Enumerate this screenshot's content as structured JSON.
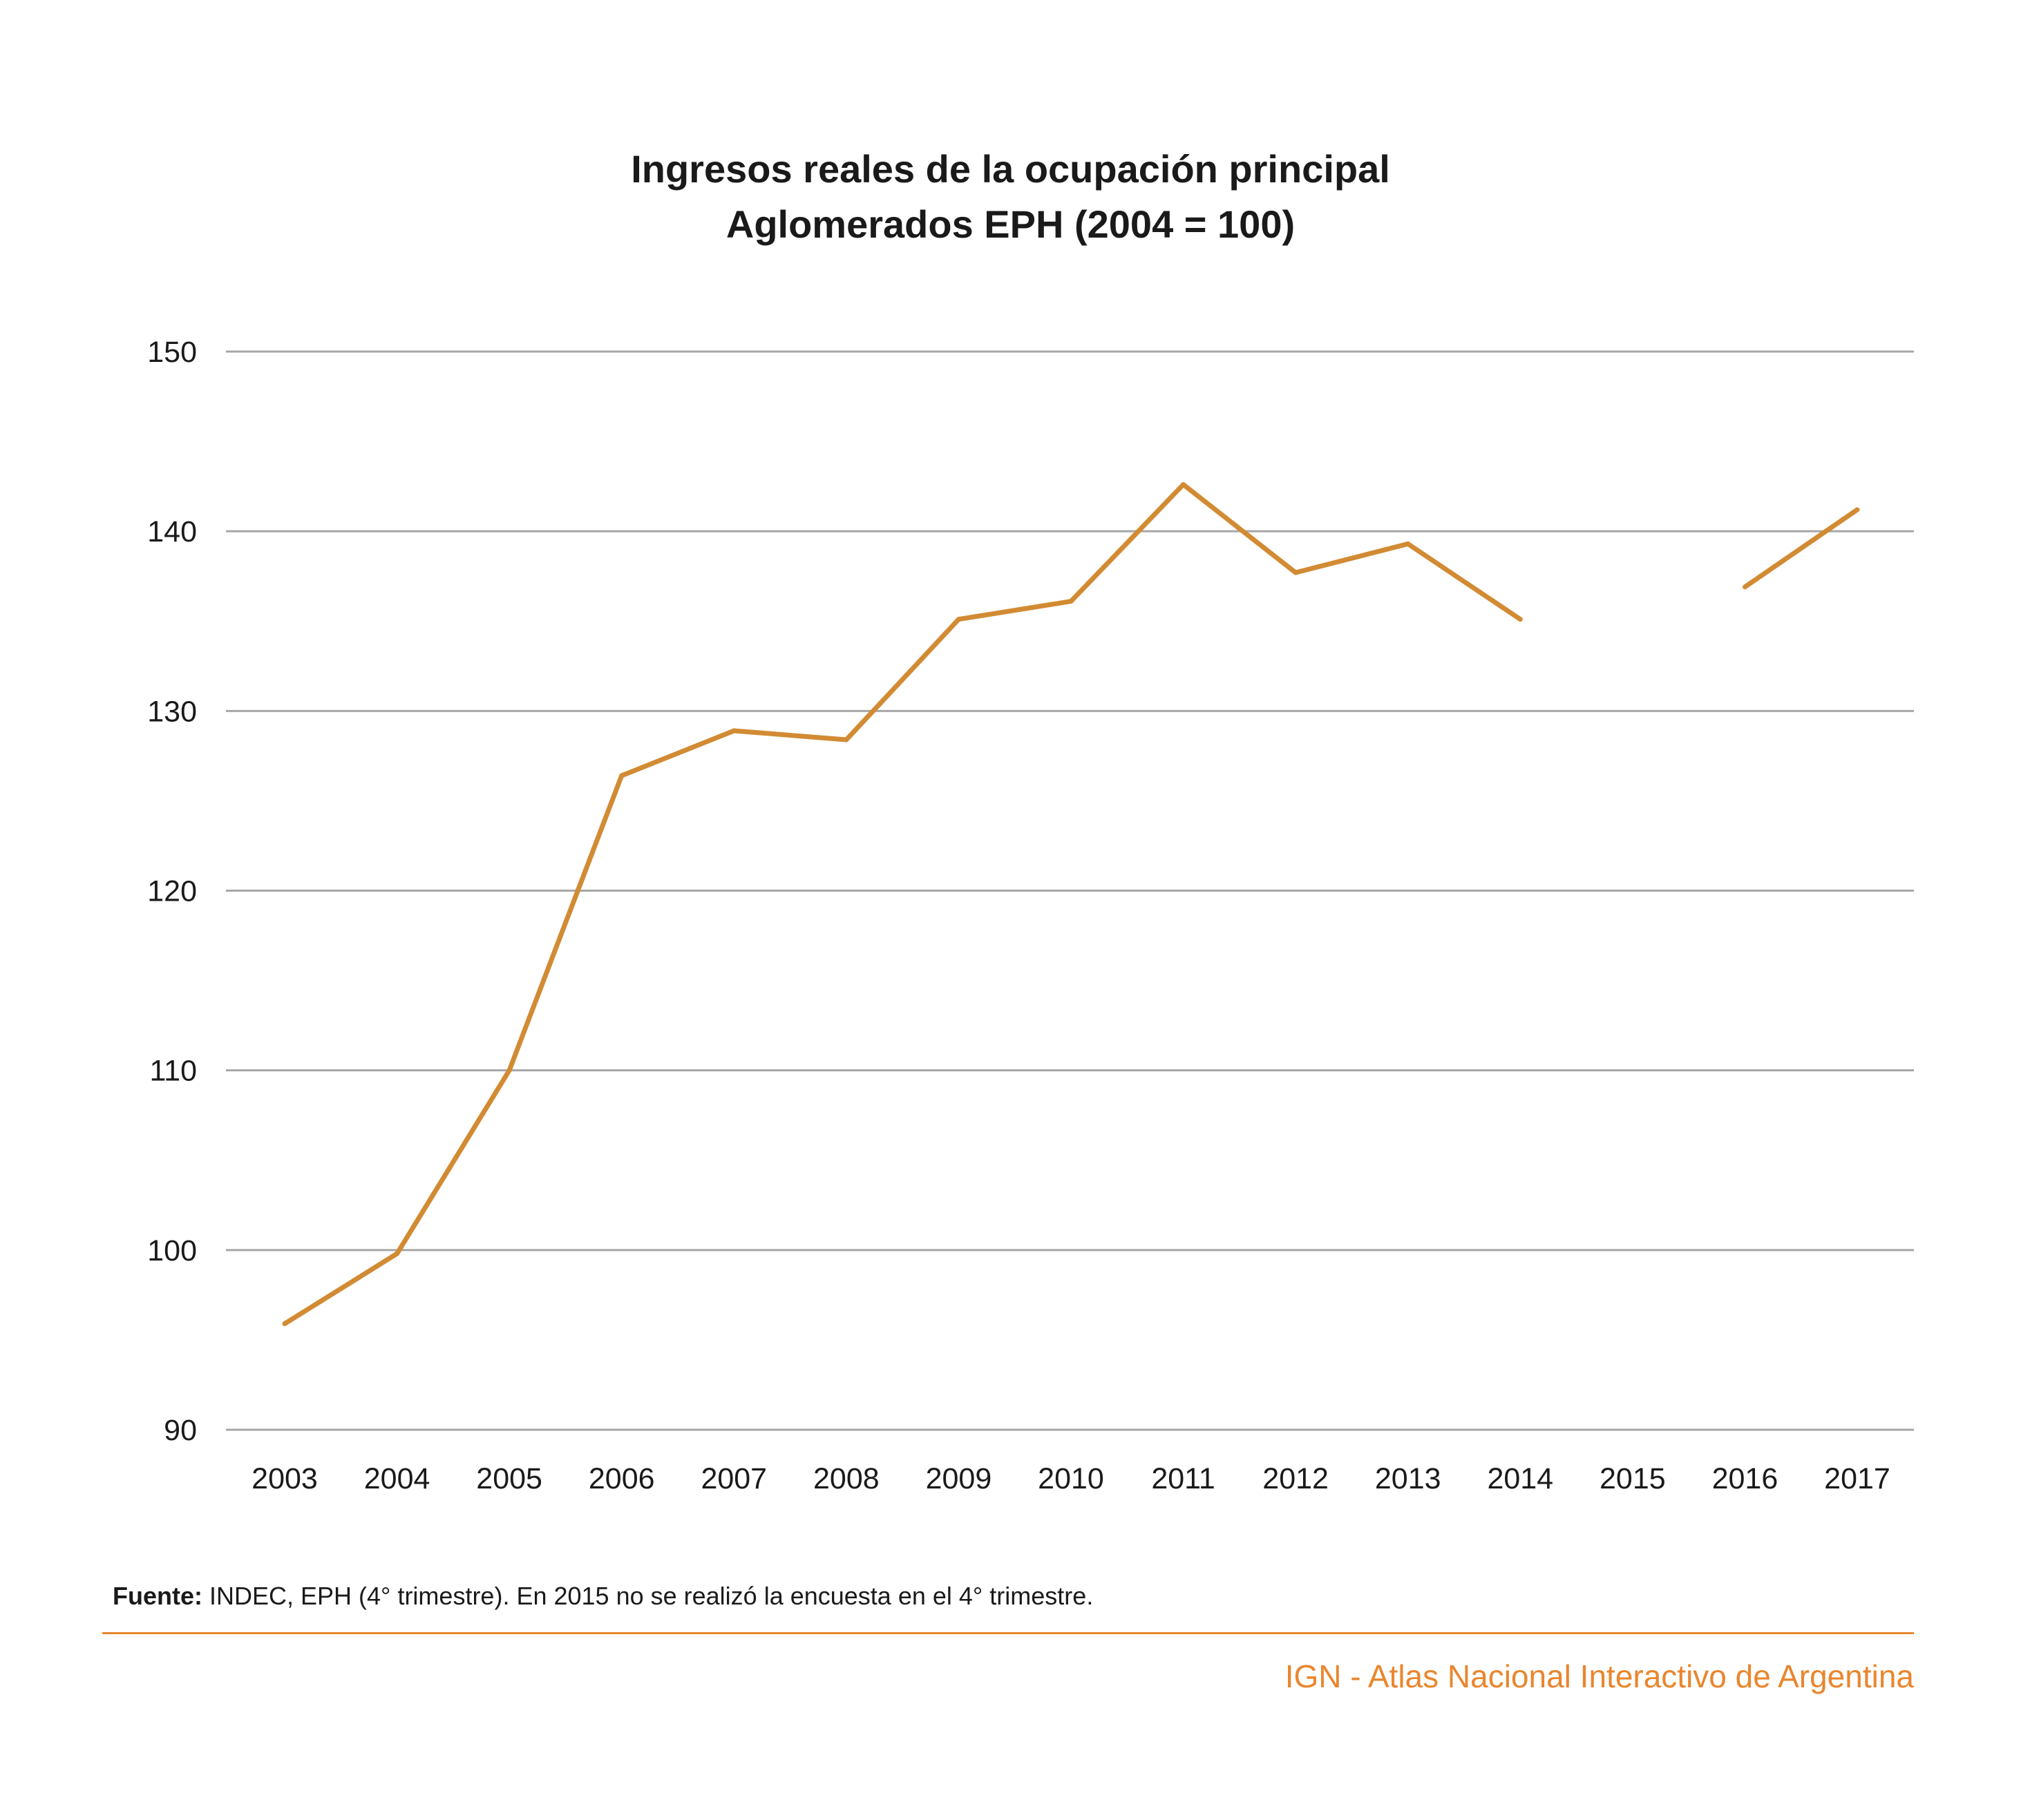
{
  "chart_data": {
    "type": "line",
    "title": "Ingresos reales de la ocupación principal",
    "subtitle": "Aglomerados EPH (2004 = 100)",
    "xlabel": "",
    "ylabel": "",
    "categories": [
      "2003",
      "2004",
      "2005",
      "2006",
      "2007",
      "2008",
      "2009",
      "2010",
      "2011",
      "2012",
      "2013",
      "2014",
      "2015",
      "2016",
      "2017"
    ],
    "series": [
      {
        "values": [
          95.9,
          99.8,
          110.0,
          126.4,
          128.9,
          128.4,
          135.1,
          136.1,
          142.6,
          137.7,
          139.3,
          135.1,
          null,
          136.9,
          141.2
        ],
        "color": "#d28b33"
      }
    ],
    "ylim": [
      90,
      150
    ],
    "yticks": [
      "90",
      "100",
      "110",
      "120",
      "130",
      "140",
      "150"
    ],
    "grid": true,
    "legend": "none"
  },
  "source": {
    "label": "Fuente:",
    "text": " INDEC, EPH (4° trimestre). En 2015 no se realizó la encuesta en el 4° trimestre."
  },
  "credit": "IGN - Atlas Nacional Interactivo de Argentina",
  "colors": {
    "line": "#d28b33",
    "accent": "#e9862e",
    "grid": "#a6a6a6"
  }
}
